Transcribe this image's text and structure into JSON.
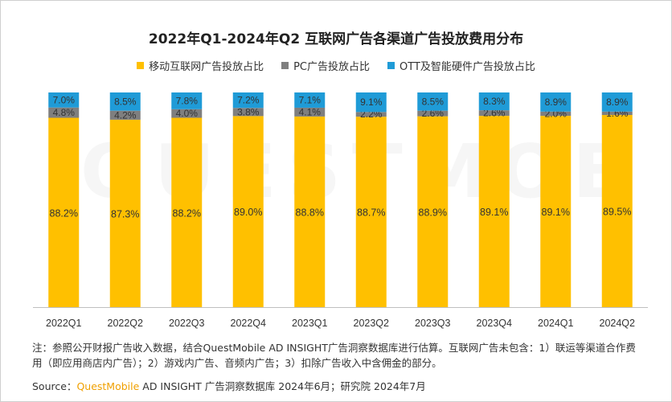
{
  "title": "2022年Q1-2024年Q2 互联网广告各渠道广告投放费用分布",
  "watermark": "QUESTMOBILE",
  "legend": [
    {
      "label": "移动互联网广告投放占比",
      "color": "#FFC000"
    },
    {
      "label": "PC广告投放占比",
      "color": "#7F7F7F"
    },
    {
      "label": "OTT及智能硬件广告投放占比",
      "color": "#1F9BD7"
    }
  ],
  "note": "注：参照公开财报广告收入数据，结合QuestMobile AD INSIGHT广告洞察数据库进行估算。互联网广告未包含：1）联运等渠道合作费用（即应用商店内广告）；2）游戏内广告、音频内广告；3）扣除广告收入中含佣金的部分。",
  "source": {
    "prefix": "Source：",
    "brand": "QuestMobile",
    "rest": " AD INSIGHT 广告洞察数据库 2024年6月；研究院 2024年7月"
  },
  "chart_data": {
    "type": "bar",
    "stacked": true,
    "categories": [
      "2022Q1",
      "2022Q2",
      "2022Q3",
      "2022Q4",
      "2023Q1",
      "2023Q2",
      "2023Q3",
      "2023Q4",
      "2024Q1",
      "2024Q2"
    ],
    "series": [
      {
        "name": "移动互联网广告投放占比",
        "color": "#FFC000",
        "values": [
          88.2,
          87.3,
          88.2,
          89.0,
          88.8,
          88.7,
          88.9,
          89.1,
          89.1,
          89.5
        ],
        "labels": [
          "88.2%",
          "87.3%",
          "88.2%",
          "89.0%",
          "88.8%",
          "88.7%",
          "88.9%",
          "89.1%",
          "89.1%",
          "89.5%"
        ]
      },
      {
        "name": "PC广告投放占比",
        "color": "#7F7F7F",
        "values": [
          4.8,
          4.2,
          4.0,
          3.8,
          4.1,
          2.2,
          2.6,
          2.6,
          2.0,
          1.6
        ],
        "labels": [
          "4.8%",
          "4.2%",
          "4.0%",
          "3.8%",
          "4.1%",
          "2.2%",
          "2.6%",
          "2.6%",
          "2.0%",
          "1.6%"
        ]
      },
      {
        "name": "OTT及智能硬件广告投放占比",
        "color": "#1F9BD7",
        "values": [
          7.0,
          8.5,
          7.8,
          7.2,
          7.1,
          9.1,
          8.5,
          8.3,
          8.9,
          8.9
        ],
        "labels": [
          "7.0%",
          "8.5%",
          "7.8%",
          "7.2%",
          "7.1%",
          "9.1%",
          "8.5%",
          "8.3%",
          "8.9%",
          "8.9%"
        ]
      }
    ],
    "ylim": [
      0,
      100
    ],
    "grid": false,
    "legend_position": "top"
  }
}
